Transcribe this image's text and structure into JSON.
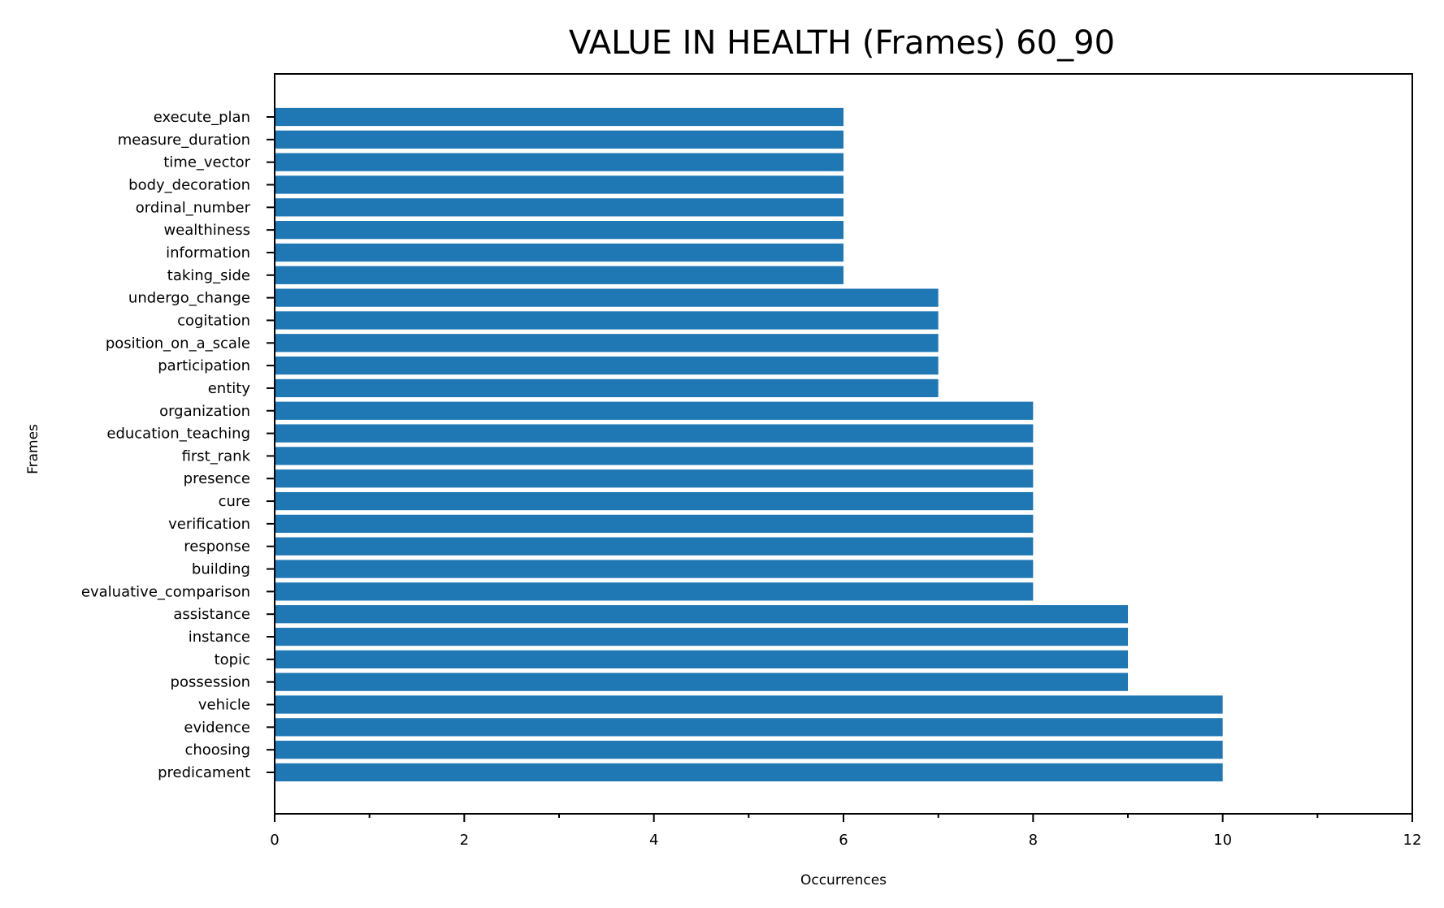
{
  "chart_data": {
    "type": "bar",
    "orientation": "horizontal",
    "title": "VALUE IN HEALTH (Frames) 60_90",
    "xlabel": "Occurrences",
    "ylabel": "Frames",
    "xlim": [
      0,
      12
    ],
    "xticks": [
      0,
      2,
      4,
      6,
      8,
      10,
      12
    ],
    "grid": false,
    "bar_color": "#1f77b4",
    "categories": [
      "predicament",
      "choosing",
      "evidence",
      "vehicle",
      "possession",
      "topic",
      "instance",
      "assistance",
      "evaluative_comparison",
      "building",
      "response",
      "verification",
      "cure",
      "presence",
      "first_rank",
      "education_teaching",
      "organization",
      "entity",
      "participation",
      "position_on_a_scale",
      "cogitation",
      "undergo_change",
      "taking_side",
      "information",
      "wealthiness",
      "ordinal_number",
      "body_decoration",
      "time_vector",
      "measure_duration",
      "execute_plan"
    ],
    "values": [
      10,
      10,
      10,
      10,
      9,
      9,
      9,
      9,
      8,
      8,
      8,
      8,
      8,
      8,
      8,
      8,
      8,
      7,
      7,
      7,
      7,
      7,
      6,
      6,
      6,
      6,
      6,
      6,
      6,
      6
    ]
  }
}
